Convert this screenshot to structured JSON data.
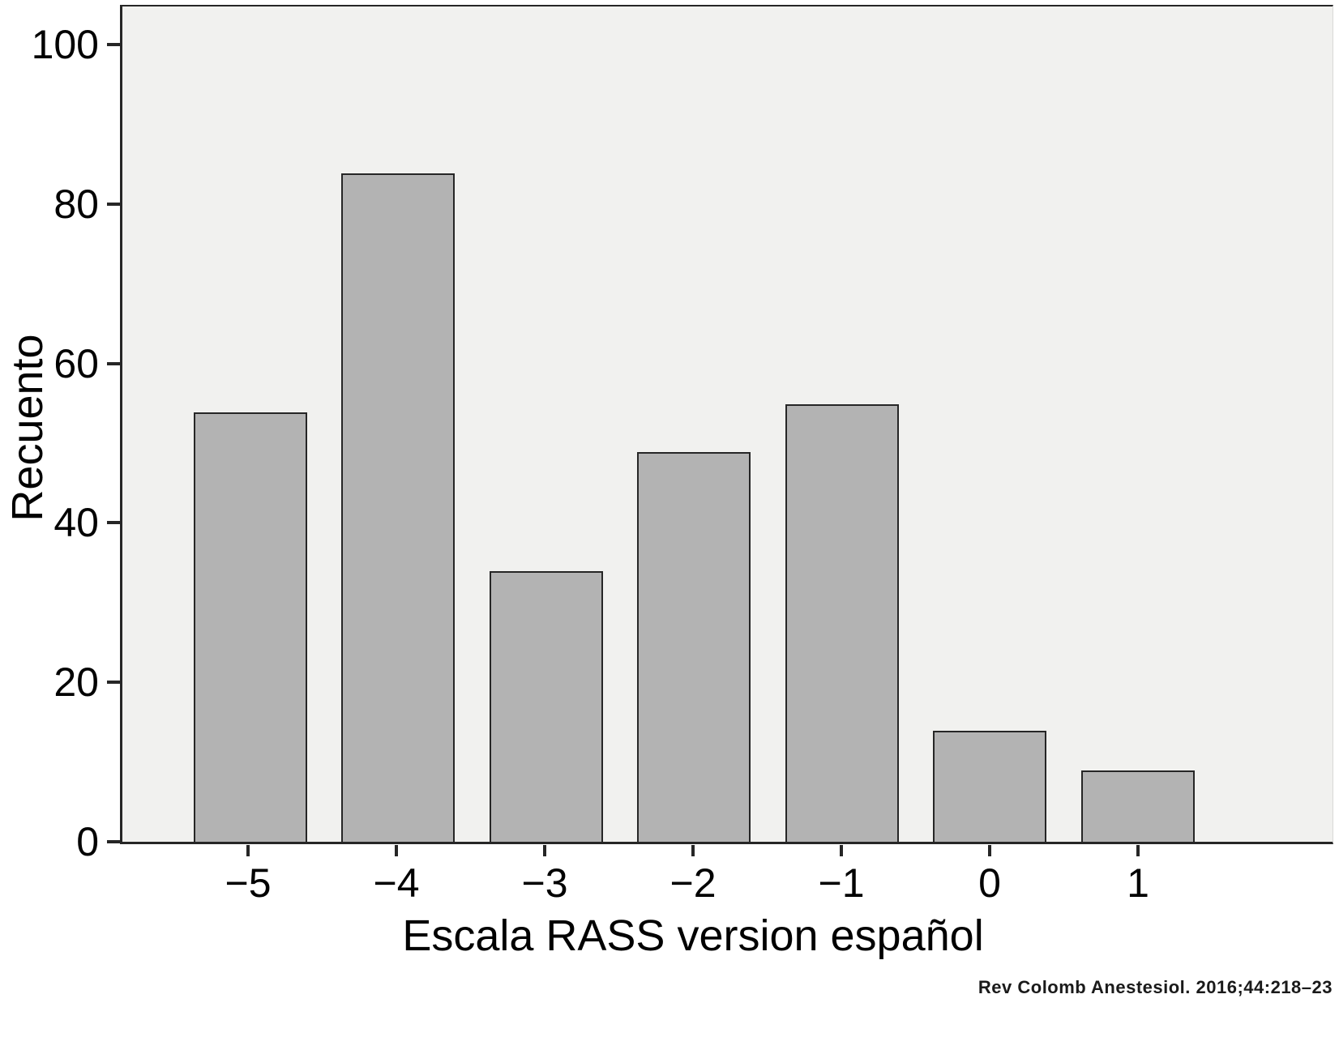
{
  "chart_data": {
    "type": "bar",
    "categories": [
      "−5",
      "−4",
      "−3",
      "−2",
      "−1",
      "0",
      "1"
    ],
    "values": [
      54,
      84,
      34,
      49,
      55,
      14,
      9
    ],
    "title": "",
    "xlabel": "Escala RASS version español",
    "ylabel": "Recuento",
    "ylim": [
      0,
      100
    ],
    "ymax_display": 105,
    "yticks": [
      0,
      20,
      40,
      60,
      80,
      100
    ],
    "grid": "off",
    "legend": "none",
    "bar_color": "#b3b3b3",
    "bar_border_color": "#262626",
    "plot_background": "#f1f1ef"
  },
  "citation": "Rev Colomb Anestesiol. 2016;44:218–23"
}
